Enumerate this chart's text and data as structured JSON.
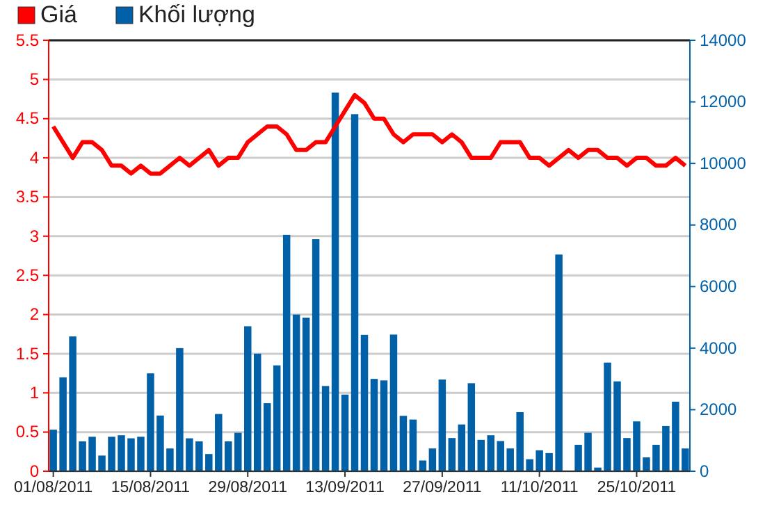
{
  "chart_data": {
    "type": "bar",
    "categories": [
      "01/08/2011",
      null,
      null,
      null,
      null,
      null,
      null,
      null,
      null,
      null,
      "15/08/2011",
      null,
      null,
      null,
      null,
      null,
      null,
      null,
      null,
      null,
      "29/08/2011",
      null,
      null,
      null,
      null,
      null,
      null,
      null,
      null,
      null,
      "13/09/2011",
      null,
      null,
      null,
      null,
      null,
      null,
      null,
      null,
      null,
      "27/09/2011",
      null,
      null,
      null,
      null,
      null,
      null,
      null,
      null,
      null,
      "11/10/2011",
      null,
      null,
      null,
      null,
      null,
      null,
      null,
      null,
      null,
      "25/10/2011",
      null,
      null,
      null,
      null,
      null
    ],
    "series": [
      {
        "name": "Khối lượng",
        "axis": "y2",
        "color": "#0060a8",
        "values": [
          1350,
          3050,
          4380,
          970,
          1120,
          510,
          1120,
          1170,
          1070,
          1120,
          3180,
          1810,
          740,
          4000,
          1070,
          970,
          560,
          1860,
          970,
          1250,
          4710,
          3820,
          2210,
          3440,
          7680,
          5090,
          4990,
          7540,
          2770,
          12300,
          2490,
          11600,
          4430,
          3000,
          2950,
          4440,
          1800,
          1680,
          350,
          740,
          2980,
          1080,
          1520,
          2860,
          1020,
          1170,
          980,
          740,
          1920,
          390,
          680,
          590,
          7040,
          null,
          860,
          1250,
          120,
          3530,
          2920,
          1080,
          1620,
          450,
          860,
          1470,
          2260,
          740
        ]
      },
      {
        "name": "Giá",
        "type": "line",
        "axis": "y",
        "color": "#ff0000",
        "values": [
          4.4,
          4.2,
          4.0,
          4.2,
          4.2,
          4.1,
          3.9,
          3.9,
          3.8,
          3.9,
          3.8,
          3.8,
          3.9,
          4.0,
          3.9,
          4.0,
          4.1,
          3.9,
          4.0,
          4.0,
          4.2,
          4.3,
          4.4,
          4.4,
          4.3,
          4.1,
          4.1,
          4.2,
          4.2,
          4.4,
          4.6,
          4.8,
          4.7,
          4.5,
          4.5,
          4.3,
          4.2,
          4.3,
          4.3,
          4.3,
          4.2,
          4.3,
          4.2,
          4.0,
          4.0,
          4.0,
          4.2,
          4.2,
          4.2,
          4.0,
          4.0,
          3.9,
          4.0,
          4.1,
          4.0,
          4.1,
          4.1,
          4.0,
          4.0,
          3.9,
          4.0,
          4.0,
          3.9,
          3.9,
          4.0,
          3.9
        ]
      }
    ],
    "ylim": [
      0,
      5.5
    ],
    "yticks": [
      0,
      0.5,
      1,
      1.5,
      2,
      2.5,
      3,
      3.5,
      4,
      4.5,
      5,
      5.5
    ],
    "y2lim": [
      0,
      14000
    ],
    "y2ticks": [
      0,
      2000,
      4000,
      6000,
      8000,
      10000,
      12000,
      14000
    ],
    "grid": "y",
    "legend": "top left",
    "line_style": "solid",
    "marker": "none"
  }
}
